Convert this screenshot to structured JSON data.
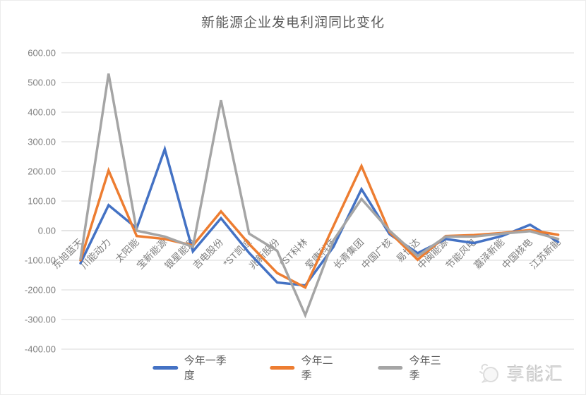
{
  "page": {
    "watermark_text": "享能汇"
  },
  "chart_data": {
    "type": "line",
    "title": "新能源企业发电利润同比变化",
    "categories": [
      "东旭蓝天",
      "川能动力",
      "太阳能",
      "宝新能源",
      "银星能源",
      "吉电股份",
      "*ST凯迪",
      "兆新股份",
      "*ST科林",
      "爱康科技",
      "长青集团",
      "中国广核",
      "易世达",
      "中闽能源",
      "节能风电",
      "嘉泽新能",
      "中国核电",
      "江苏新能"
    ],
    "series": [
      {
        "name": "今年一季度",
        "color": "#4472C4",
        "values": [
          -110,
          86,
          8,
          275,
          -70,
          42,
          -75,
          -175,
          -185,
          -55,
          140,
          -12,
          -76,
          -28,
          -42,
          -18,
          20,
          -38
        ]
      },
      {
        "name": "今年二季",
        "color": "#ED7D31",
        "values": [
          -100,
          203,
          -18,
          -28,
          -50,
          65,
          -45,
          -143,
          -192,
          15,
          218,
          -5,
          -98,
          -18,
          -15,
          -8,
          2,
          -14
        ]
      },
      {
        "name": "今年三季",
        "color": "#A5A5A5",
        "values": [
          -95,
          530,
          0,
          -20,
          -55,
          440,
          -10,
          -68,
          -285,
          -33,
          107,
          0,
          -86,
          -20,
          -20,
          -10,
          -2,
          -28
        ]
      }
    ],
    "y_ticks": [
      "600.00",
      "500.00",
      "400.00",
      "300.00",
      "200.00",
      "100.00",
      "0.00",
      "-100.00",
      "-200.00",
      "-300.00",
      "-400.00"
    ],
    "ylim": [
      -400,
      600
    ],
    "grid": true,
    "legend_position": "bottom",
    "grid_color": "#d9d9d9",
    "axis_text_color": "#7f7f7f"
  }
}
